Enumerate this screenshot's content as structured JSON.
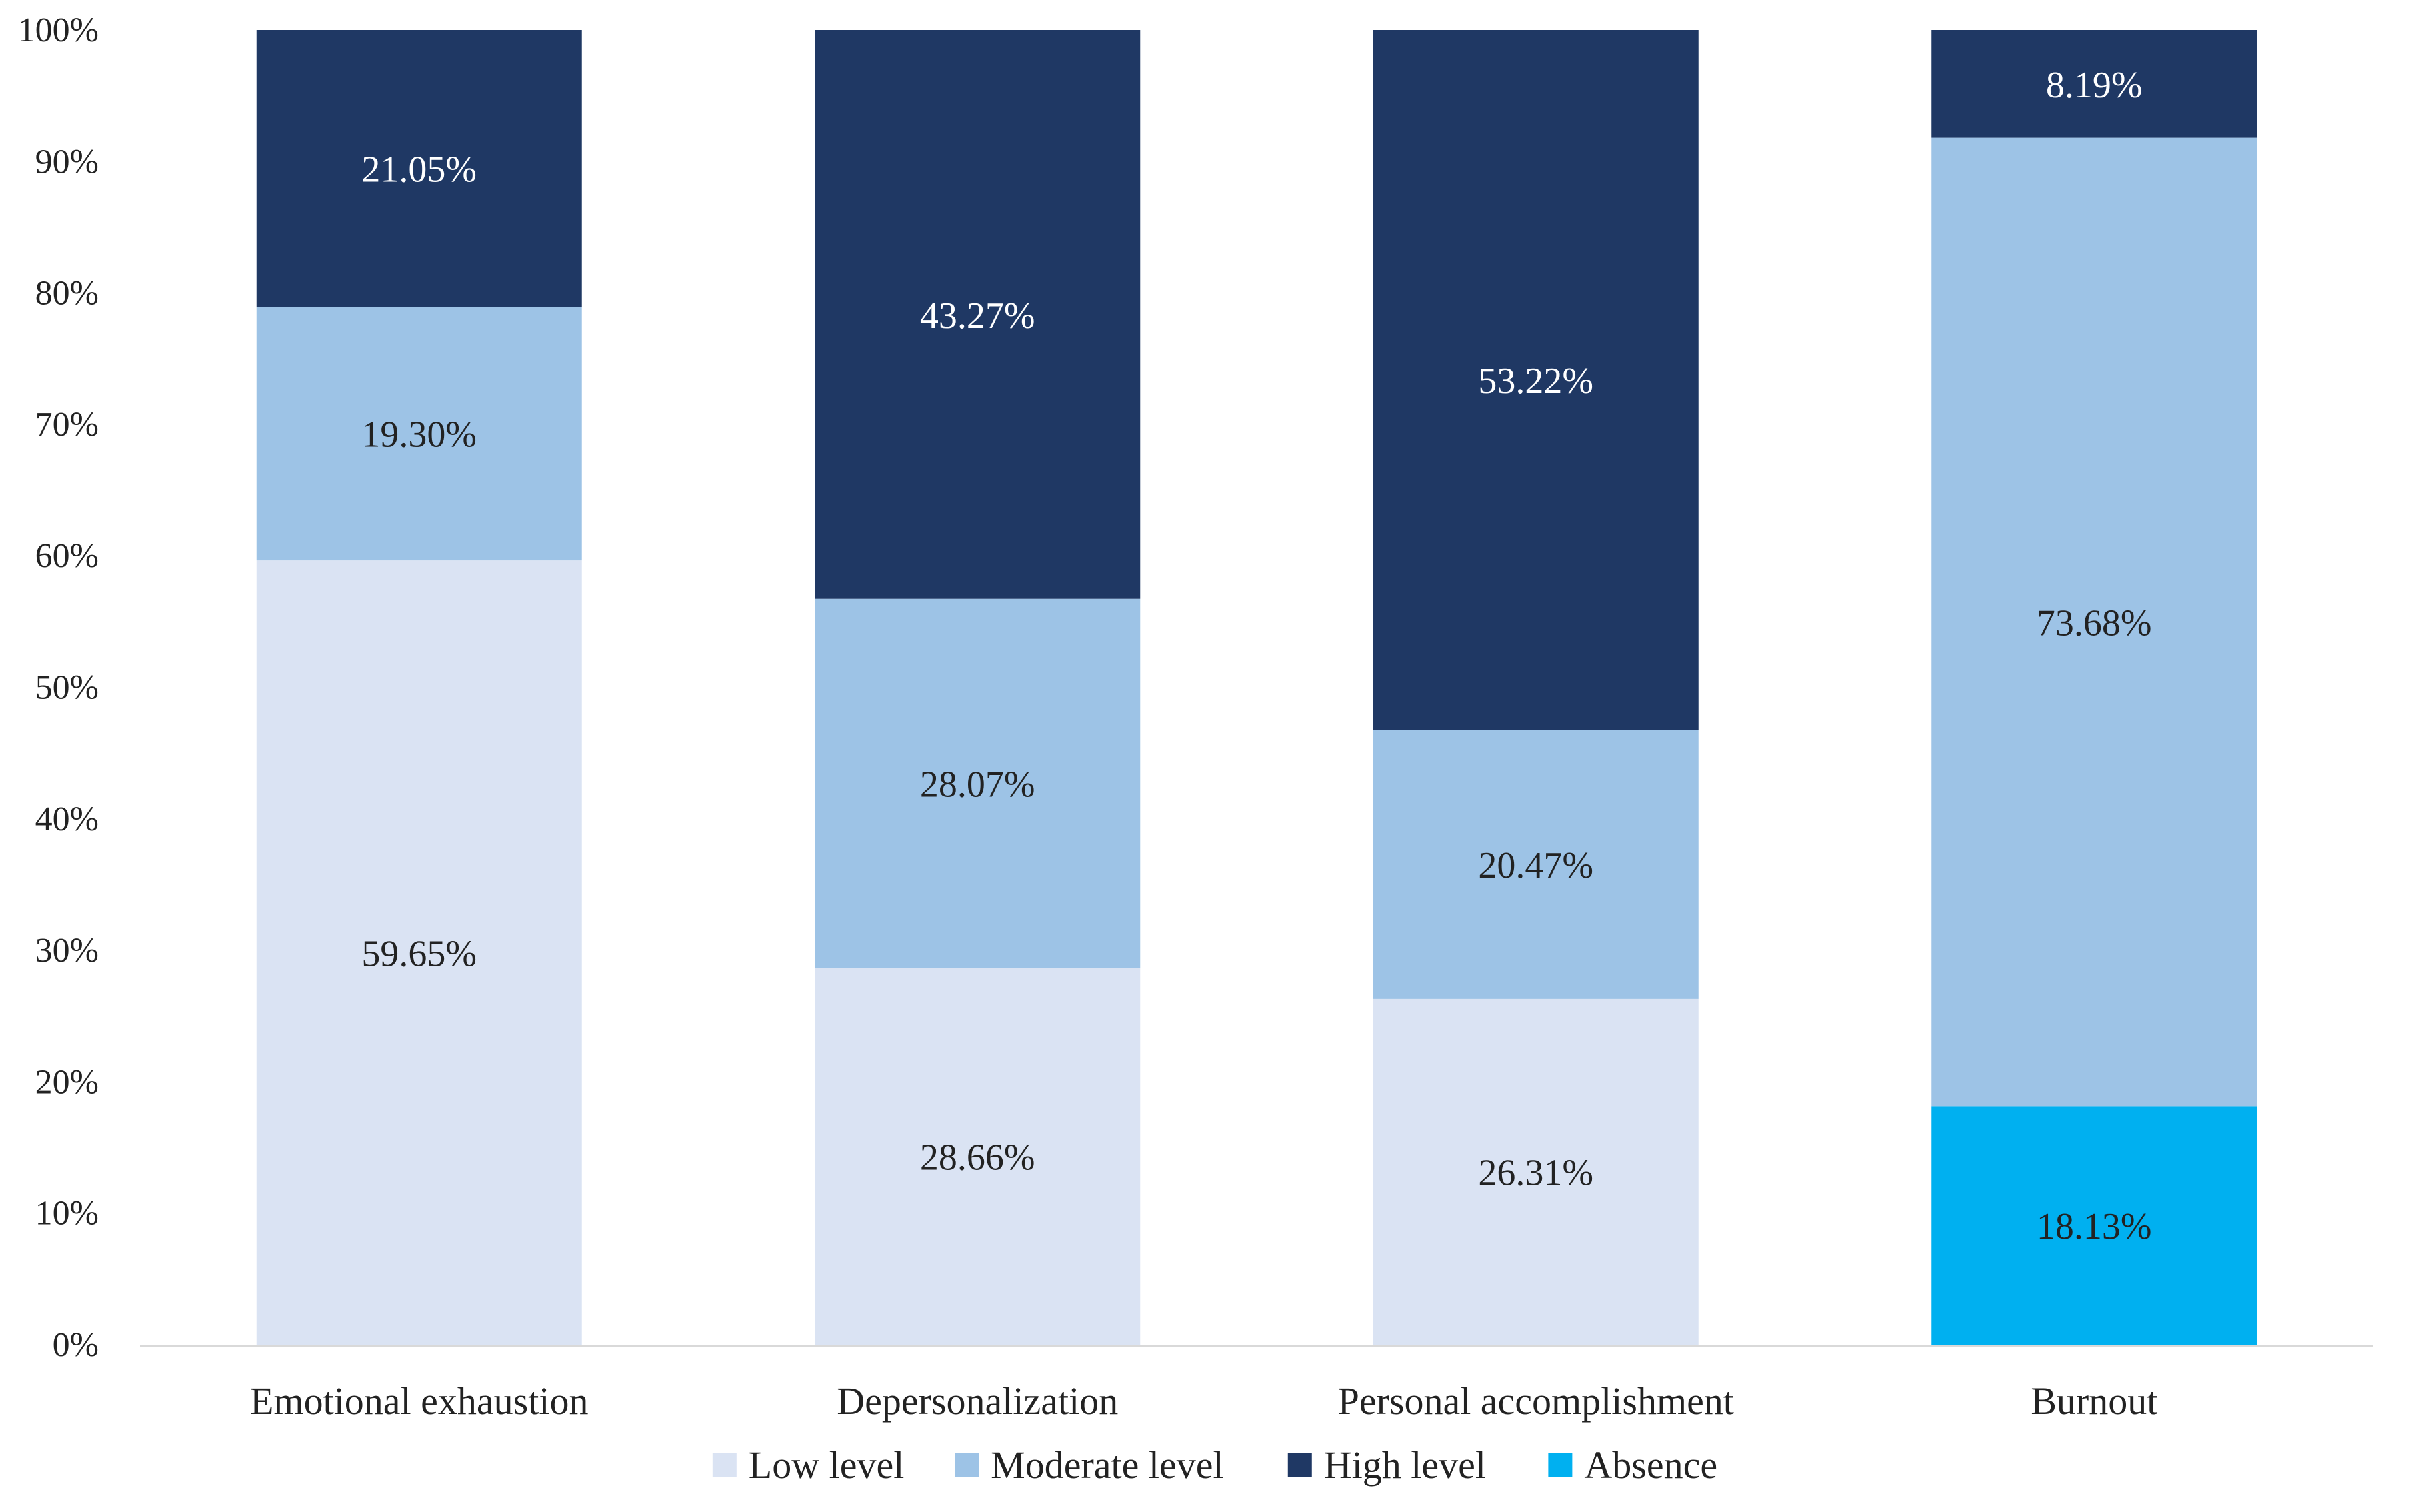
{
  "chart_data": {
    "type": "bar",
    "stacked": true,
    "percent": true,
    "title": "",
    "xlabel": "",
    "ylabel": "",
    "ylim": [
      0,
      100
    ],
    "yticks": [
      0,
      10,
      20,
      30,
      40,
      50,
      60,
      70,
      80,
      90,
      100
    ],
    "ytick_labels": [
      "0%",
      "10%",
      "20%",
      "30%",
      "40%",
      "50%",
      "60%",
      "70%",
      "80%",
      "90%",
      "100%"
    ],
    "grid": false,
    "legend_position": "bottom",
    "categories": [
      "Emotional exhaustion",
      "Depersonalization",
      "Personal accomplishment",
      "Burnout"
    ],
    "series": [
      {
        "name": "Low level",
        "color": "#dae3f3",
        "values": [
          59.65,
          28.66,
          26.31,
          null
        ],
        "labels": [
          "59.65%",
          "28.66%",
          "26.31%",
          ""
        ]
      },
      {
        "name": "Absence",
        "color": "#00b0f0",
        "values": [
          null,
          null,
          null,
          18.13
        ],
        "labels": [
          "",
          "",
          "",
          "18.13%"
        ]
      },
      {
        "name": "Moderate level",
        "color": "#9dc3e6",
        "values": [
          19.3,
          28.07,
          20.47,
          73.68
        ],
        "labels": [
          "19.30%",
          "28.07%",
          "20.47%",
          "73.68%"
        ]
      },
      {
        "name": "High level",
        "color": "#1f3864",
        "values": [
          21.05,
          43.27,
          53.22,
          8.19
        ],
        "labels": [
          "21.05%",
          "43.27%",
          "53.22%",
          "8.19%"
        ]
      }
    ],
    "legend": [
      {
        "name": "Low level",
        "color": "#dae3f3"
      },
      {
        "name": "Moderate level",
        "color": "#9dc3e6"
      },
      {
        "name": "High level",
        "color": "#1f3864"
      },
      {
        "name": "Absence",
        "color": "#00b0f0"
      }
    ],
    "label_colors": {
      "dark_segment": "#ffffff",
      "light_segment": "#222222"
    }
  }
}
